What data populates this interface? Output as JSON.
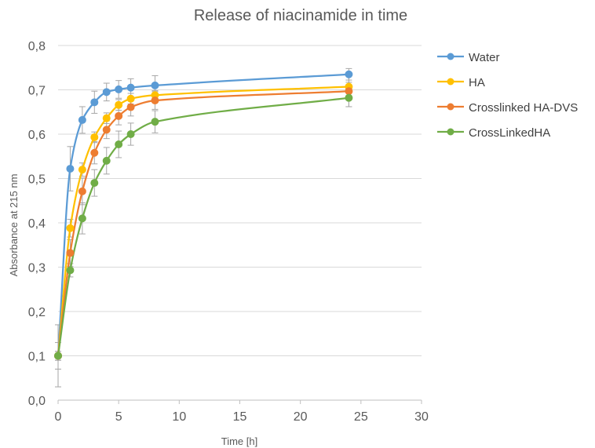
{
  "chart_data": {
    "type": "line",
    "title": "Release of niacinamide in time",
    "xlabel": "Time [h]",
    "ylabel": "Absorbance at 215 nm",
    "xlim": [
      0,
      30
    ],
    "ylim": [
      0,
      0.8
    ],
    "x_ticks": [
      0,
      5,
      10,
      15,
      20,
      25,
      30
    ],
    "y_ticks": [
      0,
      0.1,
      0.2,
      0.3,
      0.4,
      0.5,
      0.6,
      0.7,
      0.8
    ],
    "x_tick_labels": [
      "0",
      "5",
      "10",
      "15",
      "20",
      "25",
      "30"
    ],
    "y_tick_labels": [
      "0,0",
      "0,1",
      "0,2",
      "0,3",
      "0,4",
      "0,5",
      "0,6",
      "0,7",
      "0,8"
    ],
    "grid": "horizontal",
    "legend_position": "right",
    "error_bar_color": "#a6a6a6",
    "series": [
      {
        "name": "Water",
        "color": "#5b9bd5",
        "x": [
          0,
          1,
          2,
          3,
          4,
          5,
          6,
          8,
          24
        ],
        "y": [
          0.1,
          0.522,
          0.632,
          0.672,
          0.695,
          0.701,
          0.705,
          0.71,
          0.735
        ],
        "err": [
          0.07,
          0.05,
          0.03,
          0.025,
          0.02,
          0.02,
          0.02,
          0.022,
          0.013
        ]
      },
      {
        "name": "HA",
        "color": "#ffc000",
        "x": [
          0,
          1,
          2,
          3,
          4,
          5,
          6,
          8,
          24
        ],
        "y": [
          0.1,
          0.388,
          0.52,
          0.593,
          0.636,
          0.666,
          0.68,
          0.688,
          0.707
        ],
        "err": [
          0.01,
          0.02,
          0.015,
          0.012,
          0.012,
          0.012,
          0.012,
          0.01,
          0.01
        ]
      },
      {
        "name": "Crosslinked HA-DVS",
        "color": "#ed7d31",
        "x": [
          0,
          1,
          2,
          3,
          4,
          5,
          6,
          8,
          24
        ],
        "y": [
          0.1,
          0.332,
          0.471,
          0.558,
          0.61,
          0.641,
          0.661,
          0.676,
          0.697
        ],
        "err": [
          0.03,
          0.03,
          0.03,
          0.025,
          0.02,
          0.02,
          0.02,
          0.02,
          0.035
        ]
      },
      {
        "name": "CrossLinkedHA",
        "color": "#70ad47",
        "x": [
          0,
          1,
          2,
          3,
          4,
          5,
          6,
          8,
          24
        ],
        "y": [
          0.1,
          0.293,
          0.41,
          0.49,
          0.54,
          0.577,
          0.6,
          0.628,
          0.682
        ],
        "err": [
          0.01,
          0.015,
          0.035,
          0.03,
          0.03,
          0.03,
          0.025,
          0.025,
          0.02
        ]
      }
    ]
  }
}
